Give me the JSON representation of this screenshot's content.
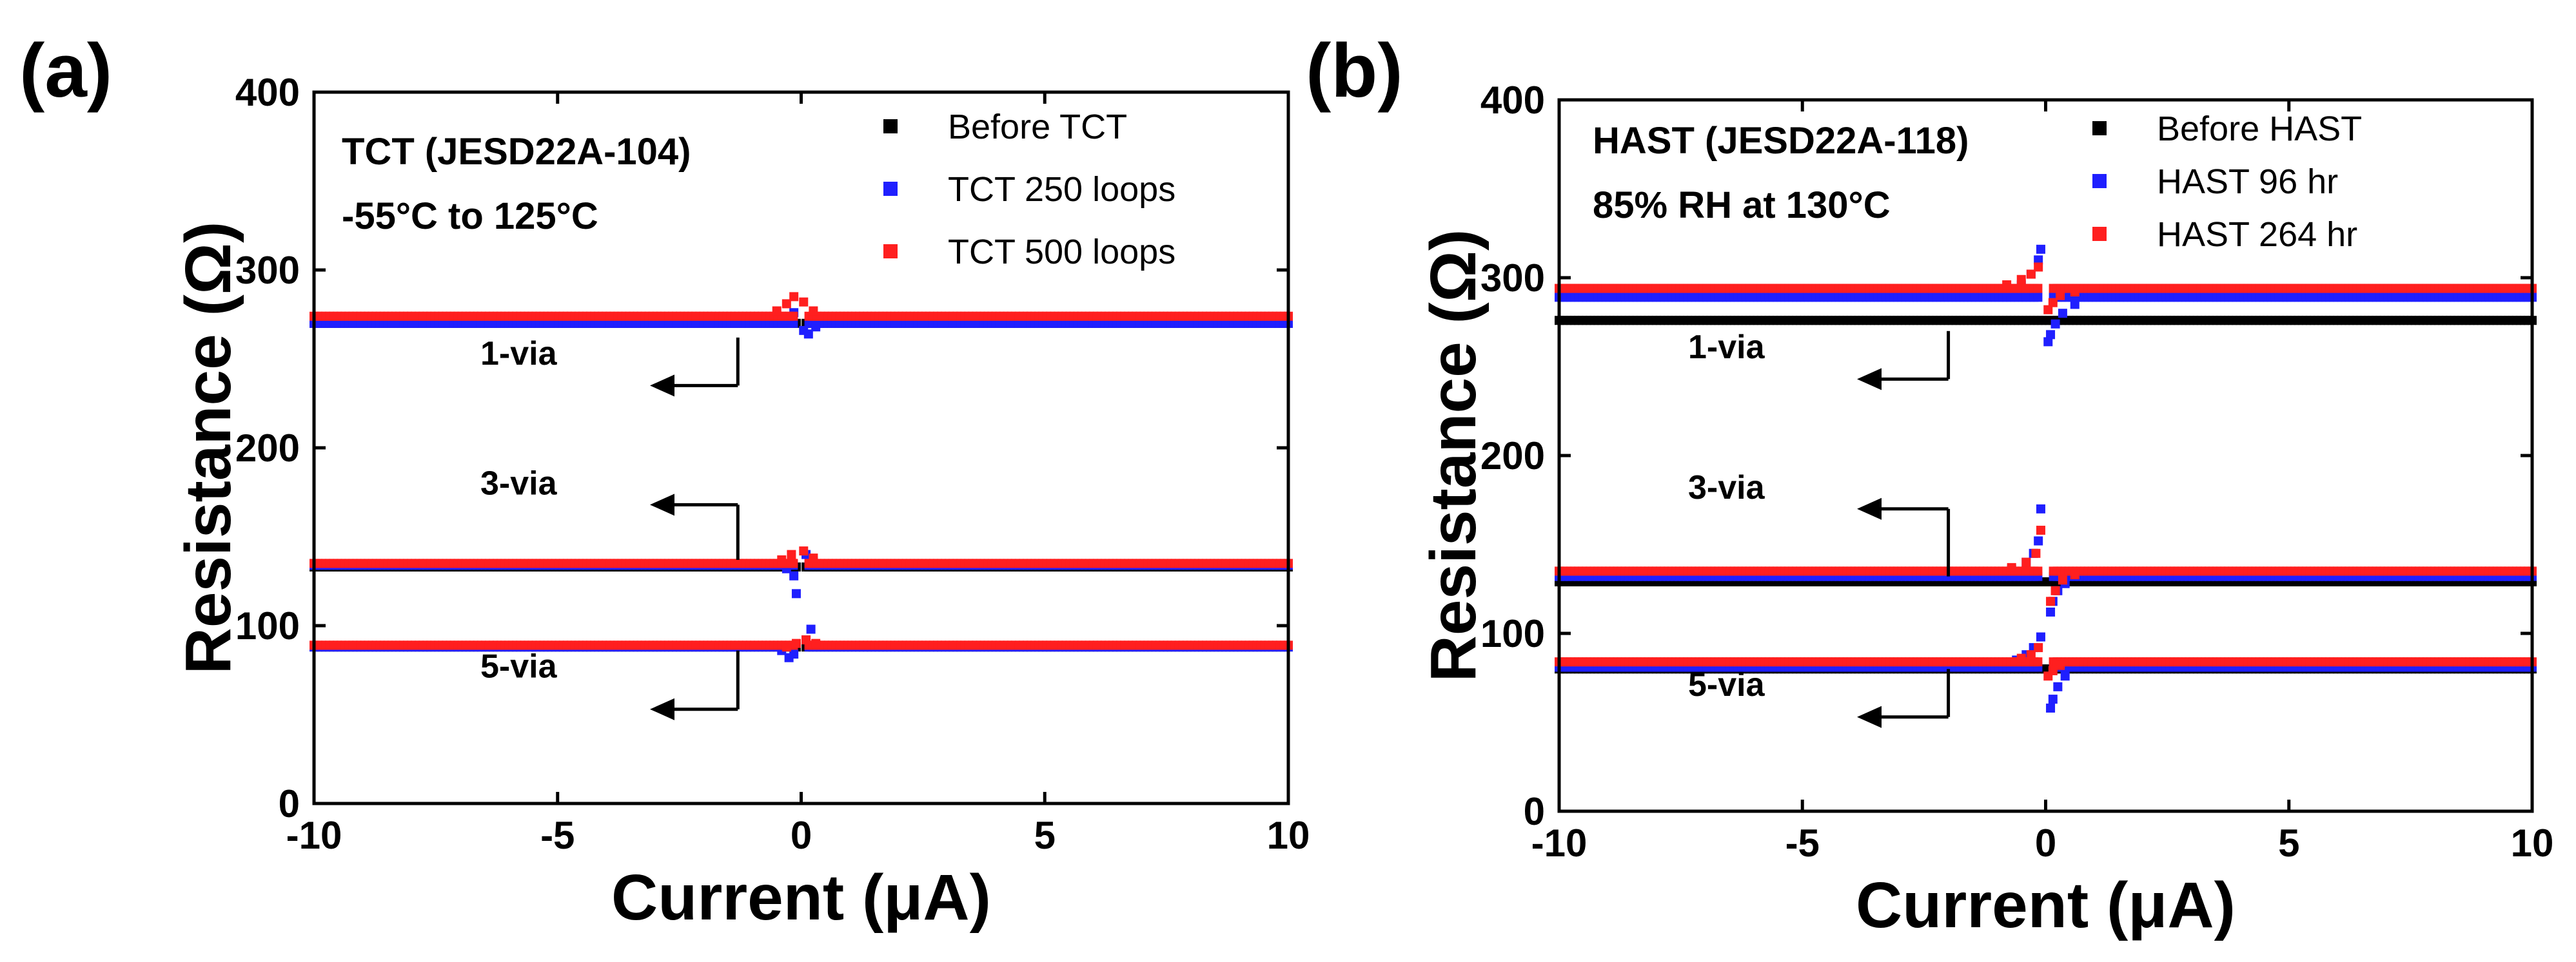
{
  "chart_data": [
    {
      "type": "scatter",
      "panel_label": "(a)",
      "xlabel": "Current (μA)",
      "ylabel": "Resistance (Ω)",
      "xlim": [
        -10,
        10
      ],
      "ylim": [
        0,
        400
      ],
      "x_ticks": [
        -10,
        -5,
        0,
        5,
        10
      ],
      "y_ticks": [
        0,
        100,
        200,
        300,
        400
      ],
      "x_tick_labels": [
        "-10",
        "-5",
        "0",
        "5",
        "10"
      ],
      "y_tick_labels": [
        "0",
        "100",
        "200",
        "300",
        "400"
      ],
      "condition_lines": [
        "TCT (JESD22A-104)",
        "-55°C to 125°C"
      ],
      "legend_position": "top-right",
      "via_annotations": [
        {
          "label": "1-via",
          "x": -1.3,
          "y_from": 262,
          "y_to": 235
        },
        {
          "label": "3-via",
          "x": -1.3,
          "y_from": 137,
          "y_to": 168
        },
        {
          "label": "5-via",
          "x": -1.3,
          "y_from": 86,
          "y_to": 53
        }
      ],
      "series": [
        {
          "name": "Before TCT",
          "color": "#000000",
          "groups": [
            {
              "baseline": 270,
              "near_zero": [
                [
                  -0.1,
                  270
                ],
                [
                  0.1,
                  270
                ]
              ]
            },
            {
              "baseline": 133,
              "near_zero": [
                [
                  -0.1,
                  133
                ],
                [
                  0.1,
                  133
                ]
              ]
            },
            {
              "baseline": 88,
              "near_zero": [
                [
                  -0.1,
                  88
                ],
                [
                  0.1,
                  88
                ]
              ]
            }
          ]
        },
        {
          "name": "TCT 250 loops",
          "color": "#1f1fff",
          "groups": [
            {
              "baseline": 270,
              "near_zero": [
                [
                  -0.3,
                  272
                ],
                [
                  -0.15,
                  276
                ],
                [
                  0.05,
                  266
                ],
                [
                  0.15,
                  264
                ],
                [
                  0.3,
                  268
                ]
              ]
            },
            {
              "baseline": 134,
              "near_zero": [
                [
                  -0.3,
                  132
                ],
                [
                  -0.15,
                  128
                ],
                [
                  -0.1,
                  118
                ],
                [
                  0.1,
                  140
                ],
                [
                  0.25,
                  136
                ]
              ]
            },
            {
              "baseline": 88,
              "near_zero": [
                [
                  -0.4,
                  86
                ],
                [
                  -0.25,
                  82
                ],
                [
                  -0.15,
                  84
                ],
                [
                  0.1,
                  92
                ],
                [
                  0.2,
                  98
                ]
              ]
            }
          ]
        },
        {
          "name": "TCT 500 loops",
          "color": "#ff1f1f",
          "groups": [
            {
              "baseline": 274,
              "near_zero": [
                [
                  -0.5,
                  277
                ],
                [
                  -0.3,
                  281
                ],
                [
                  -0.15,
                  285
                ],
                [
                  0.05,
                  282
                ],
                [
                  0.25,
                  277
                ]
              ]
            },
            {
              "baseline": 135,
              "near_zero": [
                [
                  -0.4,
                  137
                ],
                [
                  -0.2,
                  140
                ],
                [
                  0.05,
                  142
                ],
                [
                  0.25,
                  138
                ]
              ]
            },
            {
              "baseline": 89,
              "near_zero": [
                [
                  -0.3,
                  88
                ],
                [
                  -0.1,
                  90
                ],
                [
                  0.1,
                  92
                ],
                [
                  0.3,
                  90
                ]
              ]
            }
          ]
        }
      ]
    },
    {
      "type": "scatter",
      "panel_label": "(b)",
      "xlabel": "Current (μA)",
      "ylabel": "Resistance (Ω)",
      "xlim": [
        -10,
        10
      ],
      "ylim": [
        0,
        400
      ],
      "x_ticks": [
        -10,
        -5,
        0,
        5,
        10
      ],
      "y_ticks": [
        0,
        100,
        200,
        300,
        400
      ],
      "x_tick_labels": [
        "-10",
        "-5",
        "0",
        "5",
        "10"
      ],
      "y_tick_labels": [
        "0",
        "100",
        "200",
        "300",
        "400"
      ],
      "condition_lines": [
        "HAST (JESD22A-118)",
        "85% RH at 130°C"
      ],
      "legend_position": "top-right",
      "via_annotations": [
        {
          "label": "1-via",
          "x": -2.0,
          "y_from": 270,
          "y_to": 243
        },
        {
          "label": "3-via",
          "x": -2.0,
          "y_from": 132,
          "y_to": 170
        },
        {
          "label": "5-via",
          "x": -2.0,
          "y_from": 80,
          "y_to": 53
        }
      ],
      "series": [
        {
          "name": "Before HAST",
          "color": "#000000",
          "groups": [
            {
              "baseline": 276,
              "near_zero": []
            },
            {
              "baseline": 129,
              "near_zero": []
            },
            {
              "baseline": 80,
              "near_zero": []
            }
          ]
        },
        {
          "name": "HAST 96 hr",
          "color": "#1f1fff",
          "groups": [
            {
              "baseline": 289,
              "near_zero": [
                [
                  -0.8,
                  292
                ],
                [
                  -0.5,
                  296
                ],
                [
                  -0.3,
                  302
                ],
                [
                  -0.15,
                  310
                ],
                [
                  -0.1,
                  316
                ],
                [
                  0.05,
                  264
                ],
                [
                  0.1,
                  268
                ],
                [
                  0.2,
                  274
                ],
                [
                  0.35,
                  280
                ],
                [
                  0.6,
                  285
                ]
              ]
            },
            {
              "baseline": 132,
              "near_zero": [
                [
                  -0.7,
                  136
                ],
                [
                  -0.4,
                  140
                ],
                [
                  -0.25,
                  145
                ],
                [
                  -0.15,
                  152
                ],
                [
                  -0.1,
                  170
                ],
                [
                  0.1,
                  112
                ],
                [
                  0.15,
                  118
                ],
                [
                  0.25,
                  124
                ],
                [
                  0.4,
                  128
                ]
              ]
            },
            {
              "baseline": 81,
              "near_zero": [
                [
                  -0.6,
                  85
                ],
                [
                  -0.4,
                  88
                ],
                [
                  -0.25,
                  92
                ],
                [
                  -0.1,
                  98
                ],
                [
                  0.1,
                  58
                ],
                [
                  0.15,
                  63
                ],
                [
                  0.25,
                  70
                ],
                [
                  0.4,
                  76
                ]
              ]
            }
          ]
        },
        {
          "name": "HAST 264 hr",
          "color": "#ff1f1f",
          "groups": [
            {
              "baseline": 294,
              "near_zero": [
                [
                  -0.8,
                  296
                ],
                [
                  -0.5,
                  299
                ],
                [
                  -0.3,
                  302
                ],
                [
                  -0.15,
                  306
                ],
                [
                  0.05,
                  282
                ],
                [
                  0.15,
                  286
                ],
                [
                  0.3,
                  290
                ],
                [
                  0.6,
                  292
                ]
              ]
            },
            {
              "baseline": 135,
              "near_zero": [
                [
                  -0.7,
                  137
                ],
                [
                  -0.4,
                  140
                ],
                [
                  -0.2,
                  145
                ],
                [
                  -0.1,
                  158
                ],
                [
                  0.1,
                  118
                ],
                [
                  0.2,
                  124
                ],
                [
                  0.35,
                  130
                ],
                [
                  0.6,
                  133
                ]
              ]
            },
            {
              "baseline": 84,
              "near_zero": [
                [
                  -0.5,
                  86
                ],
                [
                  -0.3,
                  88
                ],
                [
                  -0.15,
                  92
                ],
                [
                  0.05,
                  76
                ],
                [
                  0.15,
                  79
                ],
                [
                  0.3,
                  82
                ]
              ]
            }
          ]
        }
      ]
    }
  ]
}
